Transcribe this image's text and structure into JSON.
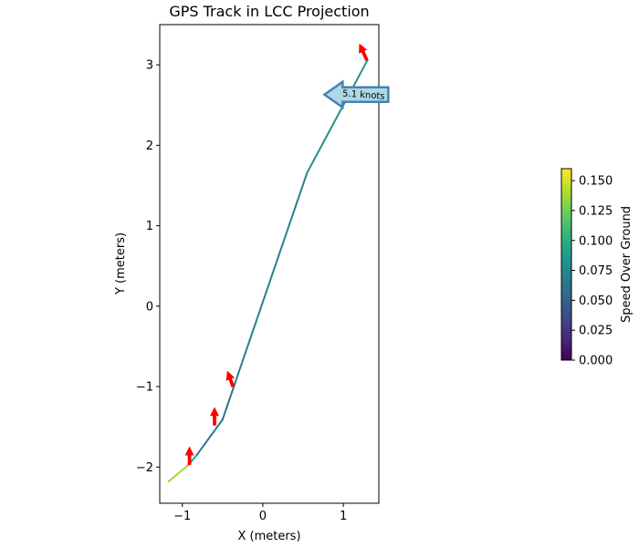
{
  "chart_data": {
    "type": "line",
    "title": "GPS Track in LCC Projection",
    "xlabel": "X (meters)",
    "ylabel": "Y (meters)",
    "xlim": [
      -1.28,
      1.44
    ],
    "ylim": [
      -2.45,
      3.5
    ],
    "xticks": [
      -1,
      0,
      1
    ],
    "xtick_labels": [
      "−1",
      "0",
      "1"
    ],
    "yticks": [
      -2,
      -1,
      0,
      1,
      2,
      3
    ],
    "ytick_labels": [
      "−2",
      "−1",
      "0",
      "1",
      "2",
      "3"
    ],
    "grid": false,
    "track": [
      {
        "x": -1.17,
        "y": -2.18,
        "speed": 0.155
      },
      {
        "x": -0.92,
        "y": -1.97,
        "speed": 0.12
      },
      {
        "x": -0.82,
        "y": -1.85,
        "speed": 0.07
      },
      {
        "x": -0.5,
        "y": -1.41,
        "speed": 0.06
      },
      {
        "x": -0.35,
        "y": -0.97,
        "speed": 0.06
      },
      {
        "x": 0.55,
        "y": 1.66,
        "speed": 0.08
      },
      {
        "x": 1.3,
        "y": 3.06,
        "speed": 0.08
      }
    ],
    "heading_arrows": [
      {
        "x": -0.91,
        "y": -1.97,
        "dx": 0.0,
        "dy": 0.22
      },
      {
        "x": -0.6,
        "y": -1.48,
        "dx": 0.0,
        "dy": 0.22
      },
      {
        "x": -0.37,
        "y": -1.0,
        "dx": -0.07,
        "dy": 0.19
      },
      {
        "x": 1.29,
        "y": 3.06,
        "dx": -0.09,
        "dy": 0.2
      }
    ],
    "annotation": {
      "text": "5.1 knots",
      "x": 0.9,
      "y": 2.63
    },
    "colorbar": {
      "label": "Speed Over Ground",
      "colormap": "viridis",
      "min": 0.0,
      "max": 0.16,
      "ticks": [
        0.0,
        0.025,
        0.05,
        0.075,
        0.1,
        0.125,
        0.15
      ],
      "tick_labels": [
        "0.000",
        "0.025",
        "0.050",
        "0.075",
        "0.100",
        "0.125",
        "0.150"
      ]
    }
  },
  "colors": {
    "arrow": "#ff0000",
    "annotation_fill": "#add8e6",
    "annotation_edge": "#4682b4",
    "viridis_stops": [
      "#440154",
      "#482878",
      "#3e4989",
      "#31688e",
      "#26828e",
      "#1f9e89",
      "#35b779",
      "#6ece58",
      "#b5de2b",
      "#fde725"
    ]
  }
}
